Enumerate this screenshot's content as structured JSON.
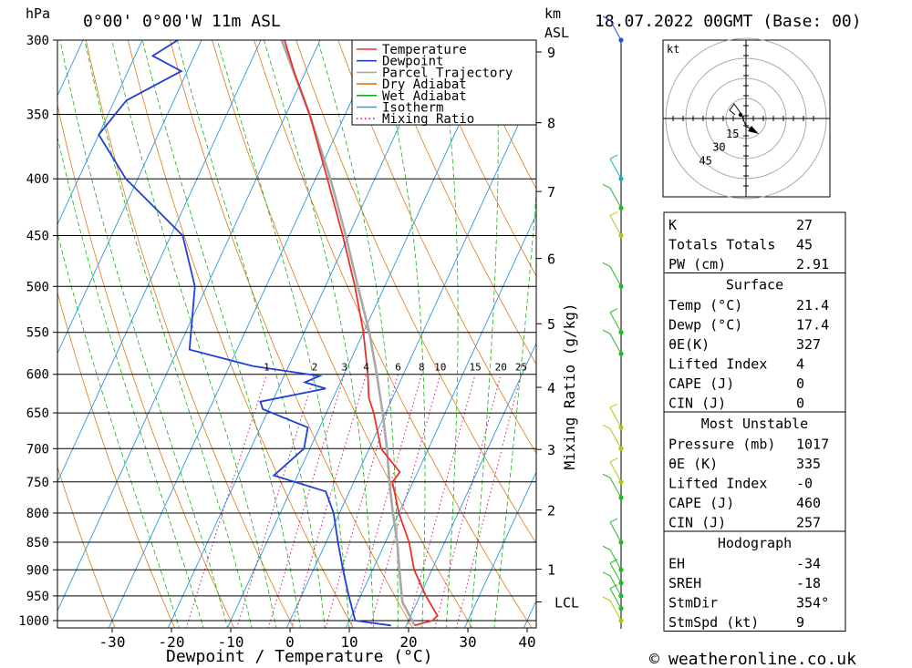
{
  "header": {
    "unit_hpa": "hPa",
    "location": "0°00' 0°00'W 11m ASL",
    "unit_km": "km",
    "unit_asl": "ASL",
    "datetime": "18.07.2022 00GMT (Base: 00)"
  },
  "legend": [
    "Temperature",
    "Dewpoint",
    "Parcel Trajectory",
    "Dry Adiabat",
    "Wet Adiabat",
    "Isotherm",
    "Mixing Ratio"
  ],
  "colors": {
    "temperature": "#e8312a",
    "dewpoint": "#1f3fd6",
    "parcel": "#a8a8a8",
    "dry_adiabat": "#e07a10",
    "wet_adiabat": "#16b016",
    "isotherm": "#2a9ae0",
    "mixing_ratio": "#d0187a",
    "wind_green": "#22bb22",
    "wind_yellowgreen": "#a8cc10",
    "wind_cyan": "#18b0c0",
    "wind_blue": "#2a4ee0"
  },
  "chart_data": {
    "type": "skew-t",
    "xlabel": "Dewpoint / Temperature (°C)",
    "ylabel_left": "hPa",
    "ylabel_right": "Mixing Ratio (g/kg)",
    "x_ticks": [
      -30,
      -20,
      -10,
      0,
      10,
      20,
      30,
      40
    ],
    "p_levels": [
      300,
      350,
      400,
      450,
      500,
      550,
      600,
      650,
      700,
      750,
      800,
      850,
      900,
      950,
      1000
    ],
    "km_ticks": [
      1,
      2,
      3,
      4,
      5,
      6,
      7,
      8,
      9
    ],
    "lcl_label": "LCL",
    "lcl_pressure": 962,
    "mixing_ratio_labels": [
      "1",
      "2",
      "3",
      "4",
      "6",
      "8",
      "10",
      "15",
      "20",
      "25"
    ],
    "mixing_ratio_values": [
      1,
      2,
      3,
      4,
      6,
      8,
      10,
      15,
      20,
      25
    ],
    "temperature": [
      {
        "p": 1010,
        "t": 21.4
      },
      {
        "p": 1000,
        "t": 24
      },
      {
        "p": 990,
        "t": 24.5
      },
      {
        "p": 950,
        "t": 21
      },
      {
        "p": 900,
        "t": 17
      },
      {
        "p": 850,
        "t": 14
      },
      {
        "p": 800,
        "t": 10
      },
      {
        "p": 750,
        "t": 6.5
      },
      {
        "p": 735,
        "t": 7
      },
      {
        "p": 700,
        "t": 2
      },
      {
        "p": 650,
        "t": -2
      },
      {
        "p": 630,
        "t": -4
      },
      {
        "p": 600,
        "t": -6
      },
      {
        "p": 550,
        "t": -10
      },
      {
        "p": 500,
        "t": -15
      },
      {
        "p": 450,
        "t": -21
      },
      {
        "p": 400,
        "t": -28
      },
      {
        "p": 350,
        "t": -36
      },
      {
        "p": 320,
        "t": -42
      },
      {
        "p": 300,
        "t": -46
      }
    ],
    "dewpoint": [
      {
        "p": 1010,
        "t": 17.4
      },
      {
        "p": 1000,
        "t": 11
      },
      {
        "p": 950,
        "t": 8
      },
      {
        "p": 900,
        "t": 5
      },
      {
        "p": 850,
        "t": 2
      },
      {
        "p": 800,
        "t": -1
      },
      {
        "p": 765,
        "t": -4
      },
      {
        "p": 740,
        "t": -14
      },
      {
        "p": 700,
        "t": -11
      },
      {
        "p": 670,
        "t": -12
      },
      {
        "p": 645,
        "t": -21
      },
      {
        "p": 635,
        "t": -22
      },
      {
        "p": 618,
        "t": -12
      },
      {
        "p": 610,
        "t": -16
      },
      {
        "p": 602,
        "t": -14
      },
      {
        "p": 590,
        "t": -26
      },
      {
        "p": 570,
        "t": -38
      },
      {
        "p": 500,
        "t": -42
      },
      {
        "p": 450,
        "t": -48
      },
      {
        "p": 400,
        "t": -62
      },
      {
        "p": 365,
        "t": -70
      },
      {
        "p": 340,
        "t": -68
      },
      {
        "p": 320,
        "t": -61
      },
      {
        "p": 310,
        "t": -67
      },
      {
        "p": 300,
        "t": -64
      }
    ],
    "parcel": [
      {
        "p": 1010,
        "t": 21.4
      },
      {
        "p": 962,
        "t": 17.5
      },
      {
        "p": 900,
        "t": 14.5
      },
      {
        "p": 850,
        "t": 12
      },
      {
        "p": 800,
        "t": 9
      },
      {
        "p": 750,
        "t": 6
      },
      {
        "p": 700,
        "t": 3
      },
      {
        "p": 650,
        "t": -0.5
      },
      {
        "p": 600,
        "t": -4.5
      },
      {
        "p": 550,
        "t": -9
      },
      {
        "p": 500,
        "t": -14.5
      },
      {
        "p": 450,
        "t": -20.5
      },
      {
        "p": 400,
        "t": -27.5
      },
      {
        "p": 350,
        "t": -36
      },
      {
        "p": 300,
        "t": -46.5
      }
    ],
    "wind_profile": [
      {
        "p": 1000,
        "color": "yellowgreen"
      },
      {
        "p": 975,
        "color": "green"
      },
      {
        "p": 950,
        "color": "green"
      },
      {
        "p": 925,
        "color": "green"
      },
      {
        "p": 900,
        "color": "green"
      },
      {
        "p": 850,
        "color": "green"
      },
      {
        "p": 775,
        "color": "green"
      },
      {
        "p": 750,
        "color": "yellowgreen"
      },
      {
        "p": 700,
        "color": "yellowgreen"
      },
      {
        "p": 670,
        "color": "yellowgreen"
      },
      {
        "p": 575,
        "color": "green"
      },
      {
        "p": 550,
        "color": "green"
      },
      {
        "p": 500,
        "color": "green"
      },
      {
        "p": 450,
        "color": "yellowgreen"
      },
      {
        "p": 425,
        "color": "green"
      },
      {
        "p": 400,
        "color": "cyan"
      },
      {
        "p": 300,
        "color": "blue"
      }
    ]
  },
  "hodograph": {
    "unit": "kt",
    "ring_labels": [
      "15",
      "30",
      "45"
    ]
  },
  "indices": {
    "rows": [
      {
        "label": "K",
        "value": "27"
      },
      {
        "label": "Totals Totals",
        "value": "45"
      },
      {
        "label": "PW (cm)",
        "value": "2.91"
      }
    ]
  },
  "surface": {
    "title": "Surface",
    "rows": [
      {
        "label": "Temp (°C)",
        "value": "21.4"
      },
      {
        "label": "Dewp (°C)",
        "value": "17.4"
      },
      {
        "label": "θE(K)",
        "value": "327"
      },
      {
        "label": "Lifted Index",
        "value": "4"
      },
      {
        "label": "CAPE (J)",
        "value": "0"
      },
      {
        "label": "CIN (J)",
        "value": "0"
      }
    ]
  },
  "most_unstable": {
    "title": "Most Unstable",
    "rows": [
      {
        "label": "Pressure (mb)",
        "value": "1017"
      },
      {
        "label": "θE (K)",
        "value": "335"
      },
      {
        "label": "Lifted Index",
        "value": "-0"
      },
      {
        "label": "CAPE (J)",
        "value": "460"
      },
      {
        "label": "CIN (J)",
        "value": "257"
      }
    ]
  },
  "hodograph_table": {
    "title": "Hodograph",
    "rows": [
      {
        "label": "EH",
        "value": "-34"
      },
      {
        "label": "SREH",
        "value": "-18"
      },
      {
        "label": "StmDir",
        "value": "354°"
      },
      {
        "label": "StmSpd (kt)",
        "value": "9"
      }
    ]
  },
  "footer": {
    "copyright_symbol": "©",
    "site": "weatheronline.co.uk"
  }
}
